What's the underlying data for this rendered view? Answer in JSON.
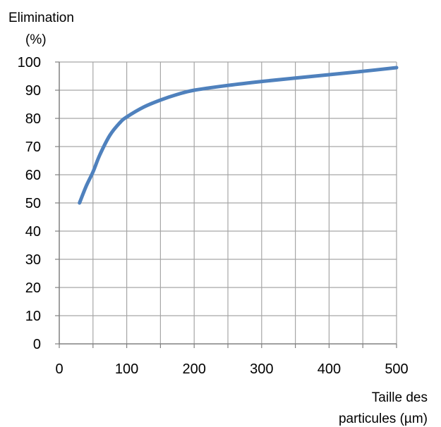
{
  "chart_data": {
    "type": "line",
    "ylabel_line1": "Elimination",
    "ylabel_line2": "(%)",
    "xlabel_line1": "Taille des",
    "xlabel_line2": "particules (µm)",
    "xlim": [
      0,
      500
    ],
    "ylim": [
      0,
      100
    ],
    "x_ticks": [
      0,
      100,
      200,
      300,
      400,
      500
    ],
    "y_ticks": [
      0,
      10,
      20,
      30,
      40,
      50,
      60,
      70,
      80,
      90,
      100
    ],
    "x_gridlines": [
      0,
      50,
      100,
      150,
      200,
      250,
      300,
      350,
      400,
      450,
      500
    ],
    "grid": true,
    "series_color": "#4F81BD",
    "grid_color": "#A6A6A6",
    "series": [
      {
        "x": [
          30,
          40,
          50,
          60,
          75,
          90,
          100,
          125,
          150,
          175,
          200,
          250,
          300,
          350,
          400,
          450,
          500
        ],
        "y": [
          50,
          56,
          61,
          67,
          74,
          78.5,
          80.5,
          84,
          86.5,
          88.5,
          90,
          91.7,
          93.1,
          94.3,
          95.5,
          96.7,
          98
        ]
      }
    ]
  }
}
